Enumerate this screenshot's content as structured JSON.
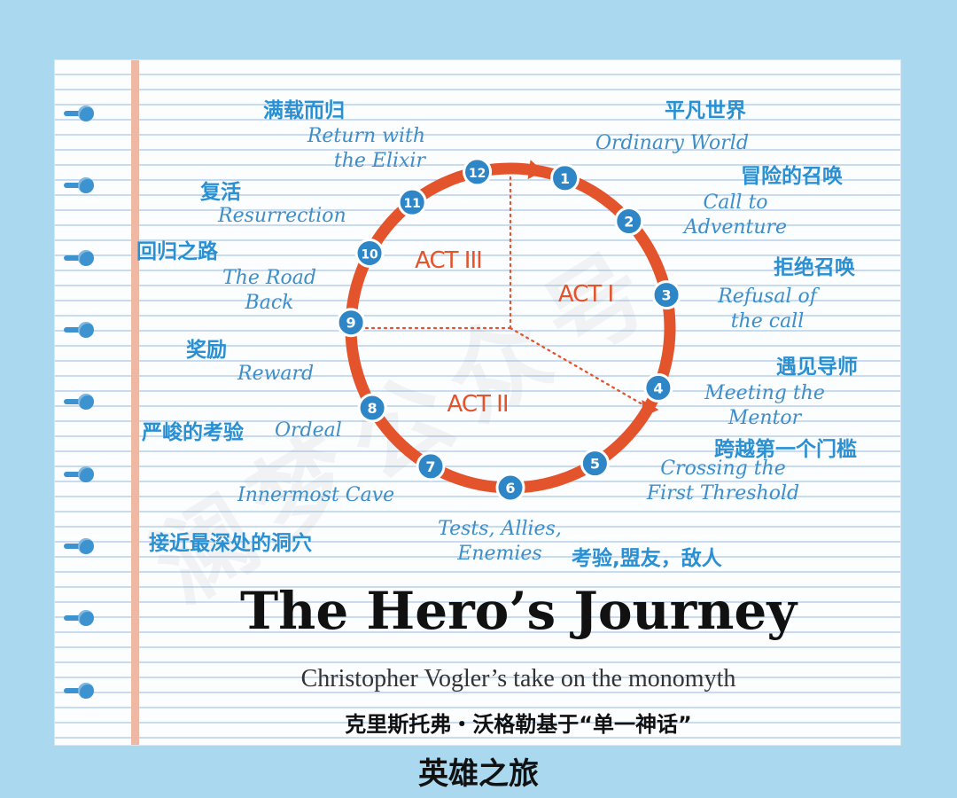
{
  "colors": {
    "background": "#a9d8ef",
    "circle": "#e4542c",
    "badge": "#2f86c6",
    "label_cn": "#2a90d2",
    "label_en": "#3d8ec9"
  },
  "watermark": "澜梦公众号",
  "acts": [
    {
      "label": "ACT I"
    },
    {
      "label": "ACT II"
    },
    {
      "label": "ACT III"
    }
  ],
  "stages": [
    {
      "num": "1",
      "en": "Ordinary World",
      "cn": "平凡世界"
    },
    {
      "num": "2",
      "en": "Call to\nAdventure",
      "cn": "冒险的召唤"
    },
    {
      "num": "3",
      "en": "Refusal of\nthe call",
      "cn": "拒绝召唤"
    },
    {
      "num": "4",
      "en": "Meeting the\nMentor",
      "cn": "遇见导师"
    },
    {
      "num": "5",
      "en": "Crossing the\nFirst Threshold",
      "cn": "跨越第一个门槛"
    },
    {
      "num": "6",
      "en": "Tests, Allies,\nEnemies",
      "cn": "考验,盟友，敌人"
    },
    {
      "num": "7",
      "en": "Innermost Cave",
      "cn": "接近最深处的洞穴"
    },
    {
      "num": "8",
      "en": "Ordeal",
      "cn": "严峻的考验"
    },
    {
      "num": "9",
      "en": "Reward",
      "cn": "奖励"
    },
    {
      "num": "10",
      "en": "The Road\nBack",
      "cn": "回归之路"
    },
    {
      "num": "11",
      "en": "Resurrection",
      "cn": "复活"
    },
    {
      "num": "12",
      "en": "Return with\nthe Elixir",
      "cn": "满载而归"
    }
  ],
  "title": "The Hero’s Journey",
  "subtitle": "Christopher Vogler’s take on the monomyth",
  "subtitle_cn": "克里斯托弗・沃格勒基于“单一神话”",
  "caption": "英雄之旅"
}
